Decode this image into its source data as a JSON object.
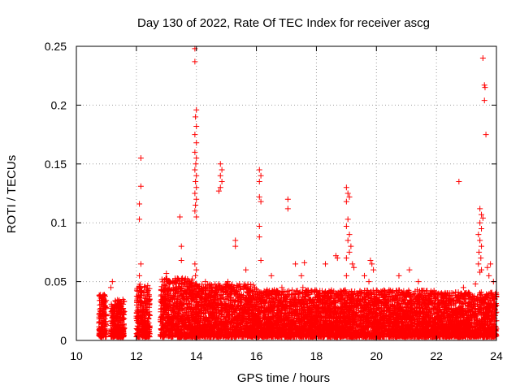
{
  "chart_data": {
    "type": "scatter",
    "title": "Day 130 of 2022, Rate Of TEC Index for receiver ascg",
    "xlabel": "GPS time / hours",
    "ylabel": "ROTI / TECUs",
    "xlim": [
      10,
      24
    ],
    "ylim": [
      0,
      0.25
    ],
    "x_ticks": [
      10,
      12,
      14,
      16,
      18,
      20,
      22,
      24
    ],
    "x_tick_labels": [
      "10",
      "12",
      "14",
      "16",
      "18",
      "20",
      "22",
      "24"
    ],
    "y_ticks": [
      0,
      0.05,
      0.1,
      0.15,
      0.2,
      0.25
    ],
    "y_tick_labels": [
      "0",
      "0.05",
      "0.1",
      "0.15",
      "0.2",
      "0.25"
    ],
    "grid": true,
    "marker": "+",
    "color": "#ff0000",
    "bands": [
      {
        "x": [
          10.75,
          11.0
        ],
        "ymax": 0.036
      },
      {
        "x": [
          11.15,
          11.6
        ],
        "ymax": 0.032
      },
      {
        "x": [
          12.0,
          12.45
        ],
        "ymax": 0.045
      },
      {
        "x": [
          12.8,
          13.9
        ],
        "ymax": 0.05
      },
      {
        "x": [
          13.9,
          16.0
        ],
        "ymax": 0.045
      },
      {
        "x": [
          16.0,
          18.0
        ],
        "ymax": 0.04
      },
      {
        "x": [
          18.0,
          20.0
        ],
        "ymax": 0.04
      },
      {
        "x": [
          20.0,
          22.0
        ],
        "ymax": 0.04
      },
      {
        "x": [
          22.0,
          24.0
        ],
        "ymax": 0.038
      }
    ],
    "outliers": [
      {
        "x": 11.2,
        "y": 0.05
      },
      {
        "x": 11.15,
        "y": 0.045
      },
      {
        "x": 12.15,
        "y": 0.155
      },
      {
        "x": 12.15,
        "y": 0.131
      },
      {
        "x": 12.1,
        "y": 0.116
      },
      {
        "x": 12.1,
        "y": 0.103
      },
      {
        "x": 12.15,
        "y": 0.065
      },
      {
        "x": 12.1,
        "y": 0.055
      },
      {
        "x": 13.45,
        "y": 0.105
      },
      {
        "x": 13.5,
        "y": 0.08
      },
      {
        "x": 13.5,
        "y": 0.068
      },
      {
        "x": 13.0,
        "y": 0.057
      },
      {
        "x": 13.95,
        "y": 0.248
      },
      {
        "x": 13.95,
        "y": 0.237
      },
      {
        "x": 14.0,
        "y": 0.196
      },
      {
        "x": 13.97,
        "y": 0.19
      },
      {
        "x": 14.0,
        "y": 0.182
      },
      {
        "x": 13.95,
        "y": 0.175
      },
      {
        "x": 14.0,
        "y": 0.168
      },
      {
        "x": 13.95,
        "y": 0.16
      },
      {
        "x": 14.0,
        "y": 0.155
      },
      {
        "x": 13.98,
        "y": 0.15
      },
      {
        "x": 13.95,
        "y": 0.145
      },
      {
        "x": 14.0,
        "y": 0.14
      },
      {
        "x": 13.97,
        "y": 0.135
      },
      {
        "x": 14.0,
        "y": 0.13
      },
      {
        "x": 13.95,
        "y": 0.125
      },
      {
        "x": 14.0,
        "y": 0.12
      },
      {
        "x": 13.97,
        "y": 0.115
      },
      {
        "x": 13.95,
        "y": 0.11
      },
      {
        "x": 14.0,
        "y": 0.105
      },
      {
        "x": 13.95,
        "y": 0.065
      },
      {
        "x": 14.0,
        "y": 0.06
      },
      {
        "x": 13.97,
        "y": 0.055
      },
      {
        "x": 14.8,
        "y": 0.15
      },
      {
        "x": 14.85,
        "y": 0.145
      },
      {
        "x": 14.8,
        "y": 0.14
      },
      {
        "x": 14.85,
        "y": 0.135
      },
      {
        "x": 14.8,
        "y": 0.13
      },
      {
        "x": 14.75,
        "y": 0.127
      },
      {
        "x": 14.3,
        "y": 0.05
      },
      {
        "x": 14.55,
        "y": 0.045
      },
      {
        "x": 15.3,
        "y": 0.085
      },
      {
        "x": 15.3,
        "y": 0.08
      },
      {
        "x": 15.65,
        "y": 0.06
      },
      {
        "x": 15.05,
        "y": 0.05
      },
      {
        "x": 16.1,
        "y": 0.145
      },
      {
        "x": 16.15,
        "y": 0.14
      },
      {
        "x": 16.1,
        "y": 0.135
      },
      {
        "x": 16.1,
        "y": 0.122
      },
      {
        "x": 16.15,
        "y": 0.118
      },
      {
        "x": 16.1,
        "y": 0.097
      },
      {
        "x": 16.1,
        "y": 0.088
      },
      {
        "x": 16.15,
        "y": 0.068
      },
      {
        "x": 16.5,
        "y": 0.055
      },
      {
        "x": 16.85,
        "y": 0.045
      },
      {
        "x": 17.05,
        "y": 0.12
      },
      {
        "x": 17.05,
        "y": 0.112
      },
      {
        "x": 17.3,
        "y": 0.065
      },
      {
        "x": 17.6,
        "y": 0.066
      },
      {
        "x": 17.5,
        "y": 0.055
      },
      {
        "x": 17.55,
        "y": 0.045
      },
      {
        "x": 18.3,
        "y": 0.065
      },
      {
        "x": 18.65,
        "y": 0.072
      },
      {
        "x": 18.7,
        "y": 0.07
      },
      {
        "x": 19.0,
        "y": 0.13
      },
      {
        "x": 19.05,
        "y": 0.125
      },
      {
        "x": 19.1,
        "y": 0.122
      },
      {
        "x": 19.0,
        "y": 0.118
      },
      {
        "x": 19.05,
        "y": 0.103
      },
      {
        "x": 19.0,
        "y": 0.097
      },
      {
        "x": 19.1,
        "y": 0.09
      },
      {
        "x": 19.05,
        "y": 0.085
      },
      {
        "x": 19.15,
        "y": 0.08
      },
      {
        "x": 19.1,
        "y": 0.075
      },
      {
        "x": 19.0,
        "y": 0.07
      },
      {
        "x": 19.2,
        "y": 0.065
      },
      {
        "x": 19.25,
        "y": 0.062
      },
      {
        "x": 19.0,
        "y": 0.055
      },
      {
        "x": 19.8,
        "y": 0.068
      },
      {
        "x": 19.85,
        "y": 0.065
      },
      {
        "x": 19.9,
        "y": 0.06
      },
      {
        "x": 19.6,
        "y": 0.055
      },
      {
        "x": 19.75,
        "y": 0.05
      },
      {
        "x": 20.75,
        "y": 0.055
      },
      {
        "x": 21.1,
        "y": 0.06
      },
      {
        "x": 21.4,
        "y": 0.05
      },
      {
        "x": 22.75,
        "y": 0.135
      },
      {
        "x": 23.55,
        "y": 0.24
      },
      {
        "x": 23.6,
        "y": 0.217
      },
      {
        "x": 23.62,
        "y": 0.215
      },
      {
        "x": 23.6,
        "y": 0.204
      },
      {
        "x": 23.65,
        "y": 0.175
      },
      {
        "x": 23.45,
        "y": 0.112
      },
      {
        "x": 23.5,
        "y": 0.107
      },
      {
        "x": 23.55,
        "y": 0.104
      },
      {
        "x": 23.45,
        "y": 0.1
      },
      {
        "x": 23.5,
        "y": 0.095
      },
      {
        "x": 23.4,
        "y": 0.09
      },
      {
        "x": 23.45,
        "y": 0.085
      },
      {
        "x": 23.5,
        "y": 0.08
      },
      {
        "x": 23.42,
        "y": 0.075
      },
      {
        "x": 23.48,
        "y": 0.07
      },
      {
        "x": 23.4,
        "y": 0.065
      },
      {
        "x": 23.5,
        "y": 0.06
      },
      {
        "x": 23.45,
        "y": 0.058
      },
      {
        "x": 23.7,
        "y": 0.062
      },
      {
        "x": 23.8,
        "y": 0.065
      },
      {
        "x": 23.75,
        "y": 0.055
      },
      {
        "x": 23.9,
        "y": 0.05
      },
      {
        "x": 23.3,
        "y": 0.048
      },
      {
        "x": 22.9,
        "y": 0.045
      }
    ]
  }
}
